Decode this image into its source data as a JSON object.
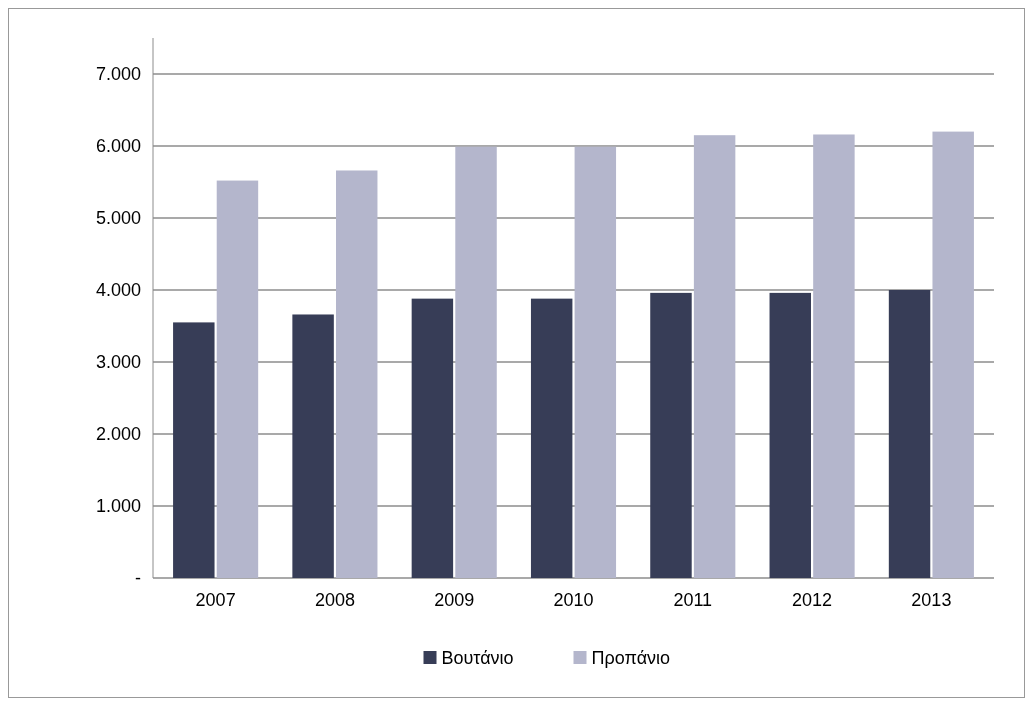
{
  "chart_data": {
    "type": "bar",
    "categories": [
      "2007",
      "2008",
      "2009",
      "2010",
      "2011",
      "2012",
      "2013"
    ],
    "series": [
      {
        "name": "Βουτάνιο",
        "color": "#373d57",
        "values": [
          3550,
          3660,
          3880,
          3880,
          3960,
          3960,
          4000
        ]
      },
      {
        "name": "Προπάνιο",
        "color": "#b4b6cc",
        "values": [
          5520,
          5660,
          5990,
          5990,
          6150,
          6160,
          6200
        ]
      }
    ],
    "ylim": [
      0,
      7500
    ],
    "yticks": [
      {
        "value": 0,
        "label": "-"
      },
      {
        "value": 1000,
        "label": "1.000"
      },
      {
        "value": 2000,
        "label": "2.000"
      },
      {
        "value": 3000,
        "label": "3.000"
      },
      {
        "value": 4000,
        "label": "4.000"
      },
      {
        "value": 5000,
        "label": "5.000"
      },
      {
        "value": 6000,
        "label": "6.000"
      },
      {
        "value": 7000,
        "label": "7.000"
      }
    ],
    "grid": "y",
    "legend": "bottom"
  }
}
